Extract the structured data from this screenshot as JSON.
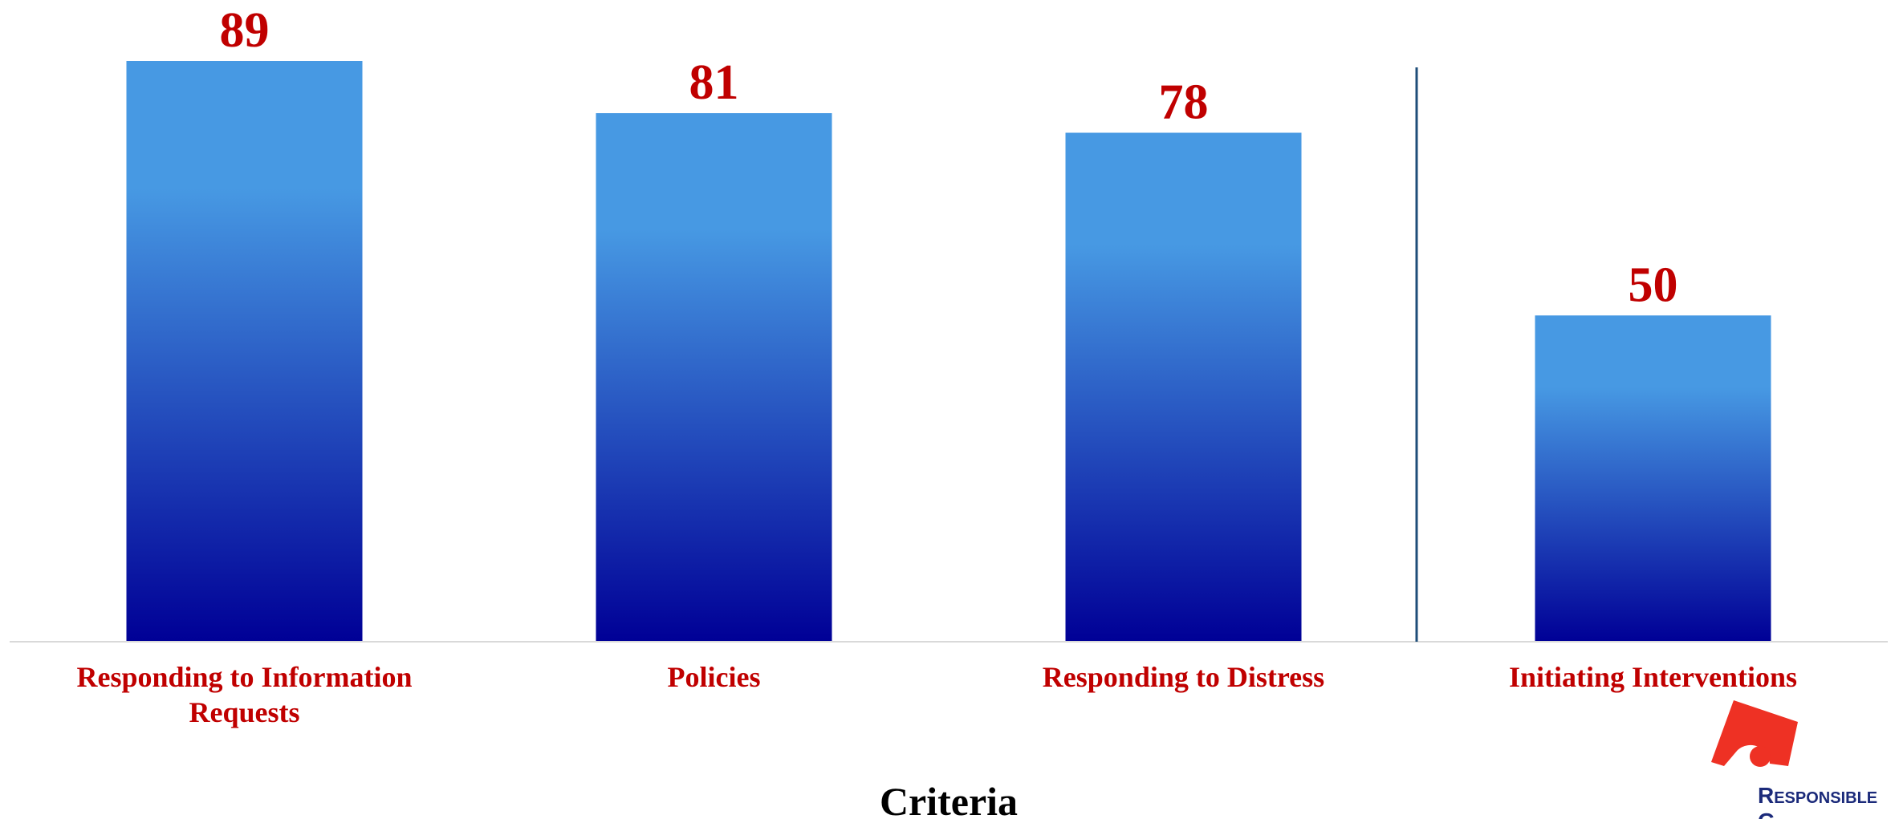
{
  "chart_data": {
    "type": "bar",
    "categories": [
      "Responding to Information Requests",
      "Policies",
      "Responding to Distress",
      "Initiating Interventions"
    ],
    "values": [
      89,
      81,
      78,
      50
    ],
    "title": "",
    "xlabel": "Criteria",
    "ylabel": "",
    "ylim": [
      0,
      89
    ],
    "grid": false,
    "legend": "none",
    "divider_after_category": "Responding to Distress"
  },
  "logo": {
    "text": "Responsible",
    "text_lines": [
      "Responsible",
      "G"
    ]
  },
  "colors": {
    "bar_top": "#4799e3",
    "bar_bottom": "#000096",
    "value_label": "#c00000",
    "category_label": "#c00000",
    "axis_title": "#000000",
    "baseline": "#d9d9d9",
    "divider": "#1f4e79",
    "logo_mark": "#ee3124",
    "logo_text": "#1b2a7a"
  }
}
